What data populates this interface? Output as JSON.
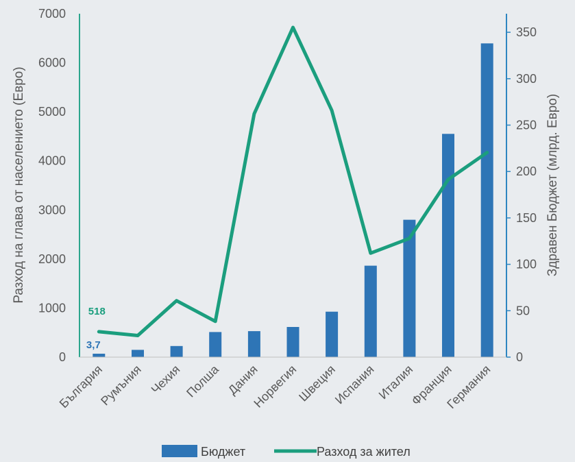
{
  "chart_data": {
    "type": "bar+line",
    "categories": [
      "България",
      "Румъния",
      "Чехия",
      "Полша",
      "Дания",
      "Норвегия",
      "Швеция",
      "Испания",
      "Италия",
      "Франция",
      "Германия"
    ],
    "series": [
      {
        "name": "Бюджет",
        "type": "bar",
        "axis": "right",
        "values": [
          3.7,
          7.8,
          12,
          27,
          28,
          32.5,
          49,
          98.5,
          148,
          240.5,
          338
        ]
      },
      {
        "name": "Разход за жител",
        "type": "line",
        "axis": "left",
        "values": [
          518,
          440,
          1150,
          730,
          4960,
          6720,
          5030,
          2120,
          2420,
          3620,
          4170
        ]
      }
    ],
    "ylabel": "Разход на глава от населението (Евро)",
    "y2label": "Здравен Бюджет (млрд. Евро)",
    "ylim": [
      0,
      7000
    ],
    "y2lim": [
      0,
      370
    ],
    "yticks": [
      "0",
      "1000",
      "2000",
      "3000",
      "4000",
      "5000",
      "6000",
      "7000"
    ],
    "y2ticks": [
      "0",
      "50",
      "100",
      "150",
      "200",
      "250",
      "300",
      "350"
    ],
    "data_labels": {
      "bar_first": "3,7",
      "line_first": "518"
    },
    "legend_position": "bottom",
    "grid": false,
    "colors": {
      "background": "#e9ecef",
      "bar": "#2e75b6",
      "line": "#1b9e7e",
      "left_axis": "#2ca58d",
      "right_axis": "#2e86c1"
    }
  }
}
